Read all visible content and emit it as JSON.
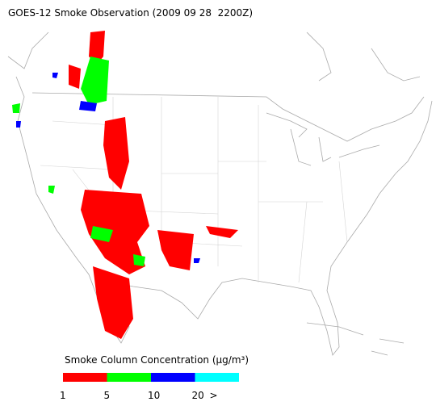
{
  "title": "GOES-12 Smoke Observation (2009 09 28  2200Z)",
  "legend": {
    "title": "Smoke Column Concentration (μg/m³)",
    "bins": [
      {
        "color": "#ff0000"
      },
      {
        "color": "#00ff00"
      },
      {
        "color": "#0000ff"
      },
      {
        "color": "#00ffff"
      }
    ],
    "ticks": [
      1,
      5,
      10,
      20,
      ">"
    ]
  }
}
